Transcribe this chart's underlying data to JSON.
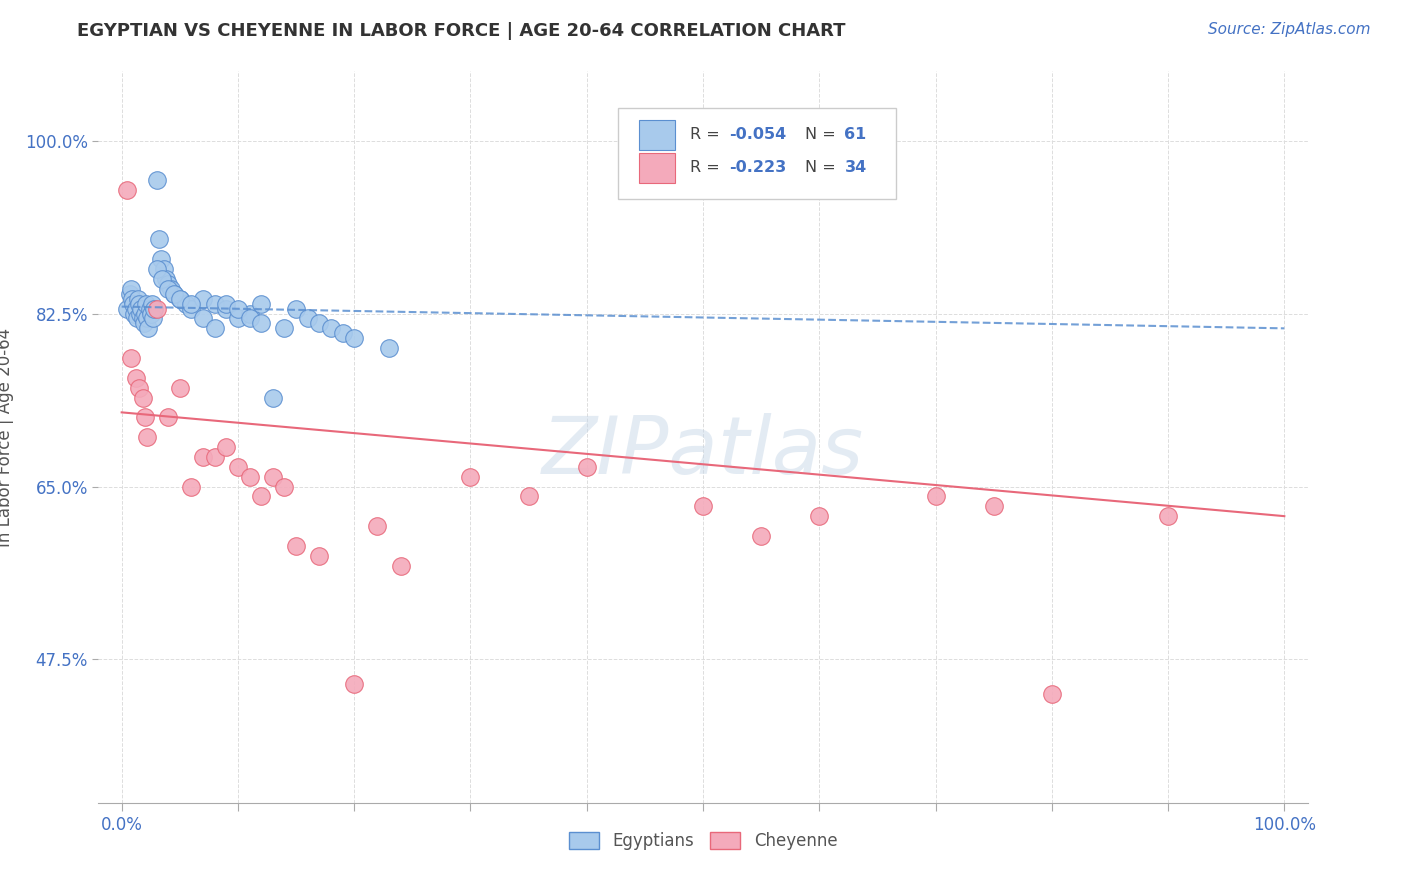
{
  "title": "EGYPTIAN VS CHEYENNE IN LABOR FORCE | AGE 20-64 CORRELATION CHART",
  "source_text": "Source: ZipAtlas.com",
  "ylabel": "In Labor Force | Age 20-64",
  "xlim": [
    -0.02,
    1.02
  ],
  "ylim": [
    0.33,
    1.07
  ],
  "x_ticks": [
    0.0,
    0.1,
    0.2,
    0.3,
    0.4,
    0.5,
    0.6,
    0.7,
    0.8,
    0.9,
    1.0
  ],
  "x_tick_labels_show": [
    "0.0%",
    "",
    "",
    "",
    "",
    "",
    "",
    "",
    "",
    "",
    "100.0%"
  ],
  "y_ticks": [
    0.475,
    0.65,
    0.825,
    1.0
  ],
  "y_tick_labels": [
    "47.5%",
    "65.0%",
    "82.5%",
    "100.0%"
  ],
  "legend_label_egyptians": "Egyptians",
  "legend_label_cheyenne": "Cheyenne",
  "blue_color": "#A8CAEC",
  "pink_color": "#F4AABB",
  "blue_line_color": "#5B8FD0",
  "pink_line_color": "#E8687A",
  "blue_dot_edge": "#5B8FD0",
  "pink_dot_edge": "#E8687A",
  "watermark": "ZIPatlas",
  "background_color": "#FFFFFF",
  "grid_color": "#DDDDDD",
  "title_color": "#333333",
  "source_color": "#4472C4",
  "blue_scatter_x": [
    0.005,
    0.007,
    0.008,
    0.009,
    0.01,
    0.011,
    0.012,
    0.013,
    0.014,
    0.015,
    0.016,
    0.017,
    0.018,
    0.019,
    0.02,
    0.021,
    0.022,
    0.023,
    0.024,
    0.025,
    0.026,
    0.027,
    0.028,
    0.03,
    0.032,
    0.034,
    0.036,
    0.038,
    0.04,
    0.042,
    0.045,
    0.05,
    0.055,
    0.06,
    0.07,
    0.08,
    0.09,
    0.1,
    0.11,
    0.12,
    0.03,
    0.035,
    0.04,
    0.045,
    0.05,
    0.06,
    0.07,
    0.08,
    0.09,
    0.1,
    0.11,
    0.12,
    0.13,
    0.14,
    0.15,
    0.16,
    0.17,
    0.18,
    0.19,
    0.2,
    0.23
  ],
  "blue_scatter_y": [
    0.83,
    0.845,
    0.85,
    0.84,
    0.835,
    0.825,
    0.83,
    0.82,
    0.84,
    0.835,
    0.825,
    0.83,
    0.82,
    0.815,
    0.825,
    0.835,
    0.82,
    0.81,
    0.83,
    0.825,
    0.835,
    0.82,
    0.83,
    0.96,
    0.9,
    0.88,
    0.87,
    0.86,
    0.855,
    0.85,
    0.845,
    0.84,
    0.835,
    0.83,
    0.84,
    0.835,
    0.83,
    0.82,
    0.825,
    0.835,
    0.87,
    0.86,
    0.85,
    0.845,
    0.84,
    0.835,
    0.82,
    0.81,
    0.835,
    0.83,
    0.82,
    0.815,
    0.74,
    0.81,
    0.83,
    0.82,
    0.815,
    0.81,
    0.805,
    0.8,
    0.79
  ],
  "pink_scatter_x": [
    0.005,
    0.008,
    0.012,
    0.015,
    0.018,
    0.02,
    0.022,
    0.03,
    0.04,
    0.05,
    0.06,
    0.07,
    0.08,
    0.09,
    0.1,
    0.11,
    0.12,
    0.13,
    0.14,
    0.15,
    0.17,
    0.2,
    0.22,
    0.24,
    0.3,
    0.35,
    0.4,
    0.5,
    0.55,
    0.6,
    0.7,
    0.75,
    0.8,
    0.9
  ],
  "pink_scatter_y": [
    0.95,
    0.78,
    0.76,
    0.75,
    0.74,
    0.72,
    0.7,
    0.83,
    0.72,
    0.75,
    0.65,
    0.68,
    0.68,
    0.69,
    0.67,
    0.66,
    0.64,
    0.66,
    0.65,
    0.59,
    0.58,
    0.45,
    0.61,
    0.57,
    0.66,
    0.64,
    0.67,
    0.63,
    0.6,
    0.62,
    0.64,
    0.63,
    0.44,
    0.62
  ],
  "blue_line_x": [
    0.0,
    1.0
  ],
  "blue_line_y": [
    0.832,
    0.81
  ],
  "pink_line_x": [
    0.0,
    1.0
  ],
  "pink_line_y": [
    0.725,
    0.62
  ]
}
